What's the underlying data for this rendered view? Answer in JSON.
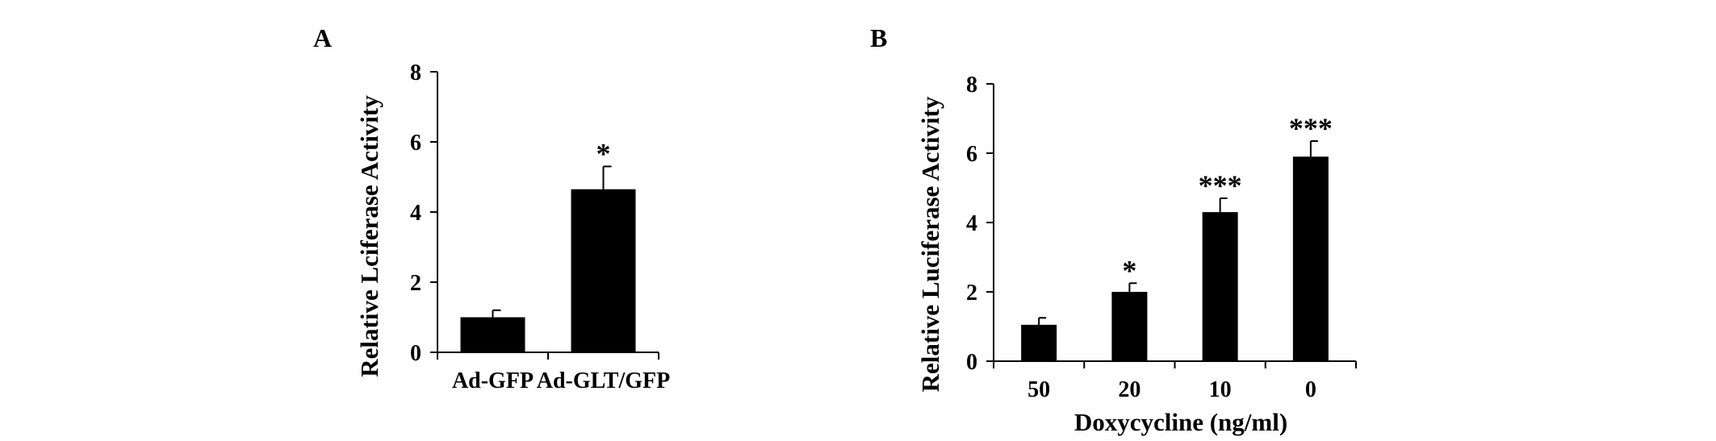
{
  "chart_data": [
    {
      "type": "bar",
      "panel": "A",
      "categories": [
        "Ad-GFP",
        "Ad-GLT/GFP"
      ],
      "values": [
        1.0,
        4.65
      ],
      "errors": [
        0.2,
        0.65
      ],
      "significance": [
        "",
        "*"
      ],
      "xlabel": "",
      "ylabel": "Relative Lciferase Activity",
      "ylim": [
        0,
        8
      ],
      "yticks": [
        "0",
        "2",
        "4",
        "6",
        "8"
      ],
      "grid": false,
      "legend": "none",
      "bar_color": "#000000"
    },
    {
      "type": "bar",
      "panel": "B",
      "categories": [
        "50",
        "20",
        "10",
        "0"
      ],
      "values": [
        1.05,
        2.0,
        4.3,
        5.9
      ],
      "errors": [
        0.2,
        0.25,
        0.4,
        0.45
      ],
      "significance": [
        "",
        "*",
        "***",
        "***"
      ],
      "xlabel": "Doxycycline (ng/ml)",
      "ylabel": "Relative Luciferase Activity",
      "ylim": [
        0,
        8
      ],
      "yticks": [
        "0",
        "2",
        "4",
        "6",
        "8"
      ],
      "grid": false,
      "legend": "none",
      "bar_color": "#000000"
    }
  ]
}
